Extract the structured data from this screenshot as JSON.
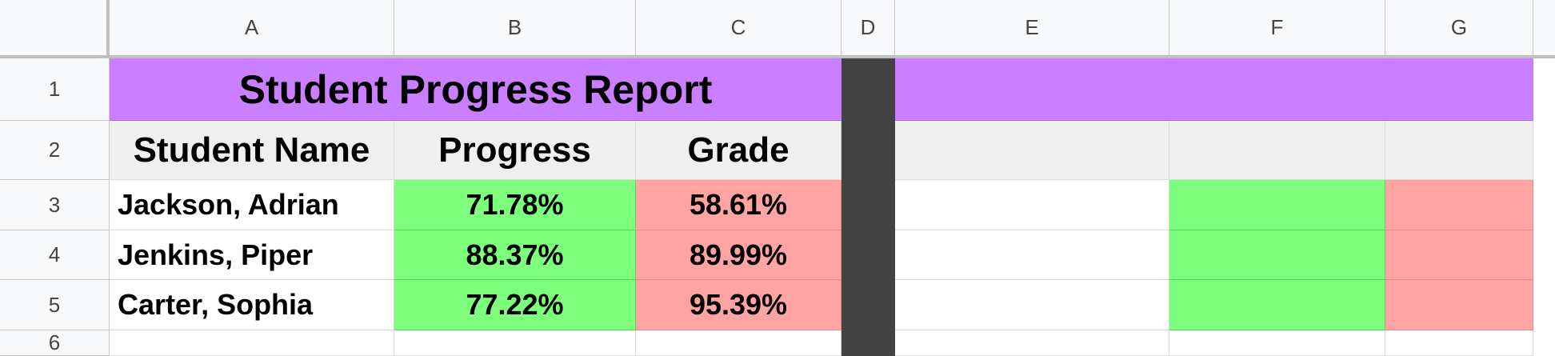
{
  "columns": [
    "A",
    "B",
    "C",
    "D",
    "E",
    "F",
    "G"
  ],
  "rows": [
    "1",
    "2",
    "3",
    "4",
    "5",
    "6"
  ],
  "title": "Student Progress Report",
  "headers": {
    "name": "Student Name",
    "progress": "Progress",
    "grade": "Grade"
  },
  "students": [
    {
      "name": "Jackson, Adrian",
      "progress": "71.78%",
      "grade": "58.61%"
    },
    {
      "name": "Jenkins, Piper",
      "progress": "88.37%",
      "grade": "89.99%"
    },
    {
      "name": "Carter, Sophia",
      "progress": "77.22%",
      "grade": "95.39%"
    }
  ],
  "colors": {
    "title_fill": "#c97fff",
    "header_fill": "#efefef",
    "progress_fill": "#7dfe7d",
    "grade_fill": "#ffa3a3",
    "column_d_fill": "#434343"
  }
}
